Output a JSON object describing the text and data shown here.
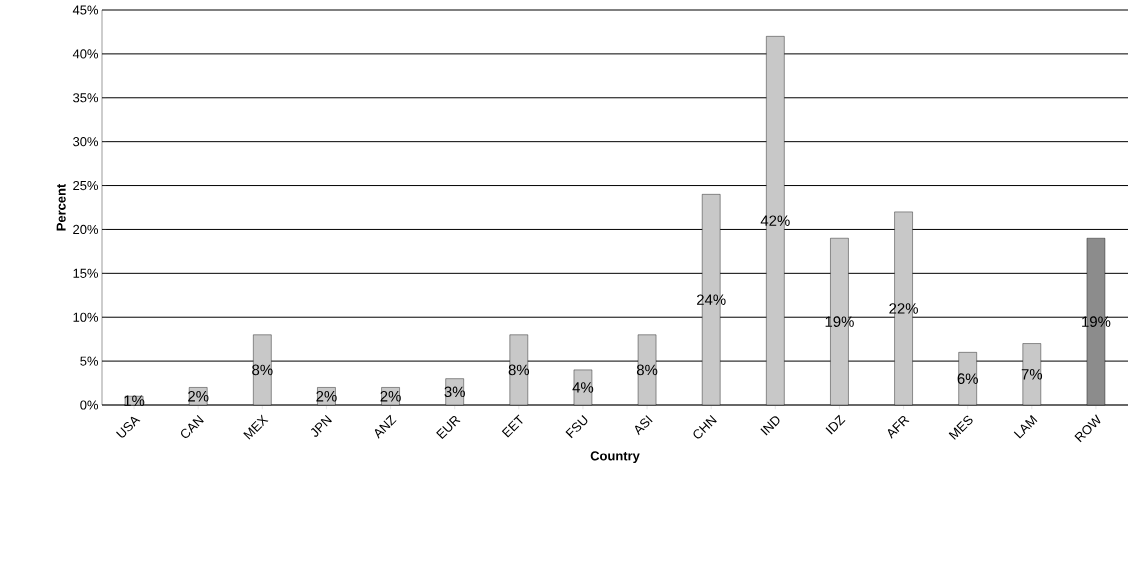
{
  "chart_data": {
    "type": "bar",
    "xlabel": "Country",
    "ylabel": "Percent",
    "categories": [
      "USA",
      "CAN",
      "MEX",
      "JPN",
      "ANZ",
      "EUR",
      "EET",
      "FSU",
      "ASI",
      "CHN",
      "IND",
      "IDZ",
      "AFR",
      "MES",
      "LAM",
      "ROW"
    ],
    "values": [
      1,
      2,
      8,
      2,
      2,
      3,
      8,
      4,
      8,
      24,
      42,
      19,
      22,
      6,
      7,
      19
    ],
    "value_labels": [
      "1%",
      "2%",
      "8%",
      "2%",
      "2%",
      "3%",
      "8%",
      "4%",
      "8%",
      "24%",
      "42%",
      "19%",
      "22%",
      "6%",
      "7%",
      "19%"
    ],
    "colors": [
      "#c8c8c8",
      "#c8c8c8",
      "#c8c8c8",
      "#c8c8c8",
      "#c8c8c8",
      "#c8c8c8",
      "#c8c8c8",
      "#c8c8c8",
      "#c8c8c8",
      "#c8c8c8",
      "#c8c8c8",
      "#c8c8c8",
      "#c8c8c8",
      "#c8c8c8",
      "#c8c8c8",
      "#8c8c8c"
    ],
    "ylim": [
      0,
      45
    ],
    "yticks": [
      {
        "value": 0,
        "label": "0%"
      },
      {
        "value": 5,
        "label": "5%"
      },
      {
        "value": 10,
        "label": "10%"
      },
      {
        "value": 15,
        "label": "15%"
      },
      {
        "value": 20,
        "label": "20%"
      },
      {
        "value": 25,
        "label": "25%"
      },
      {
        "value": 30,
        "label": "30%"
      },
      {
        "value": 35,
        "label": "35%"
      },
      {
        "value": 40,
        "label": "40%"
      },
      {
        "value": 45,
        "label": "45%"
      }
    ],
    "grid": "y"
  }
}
